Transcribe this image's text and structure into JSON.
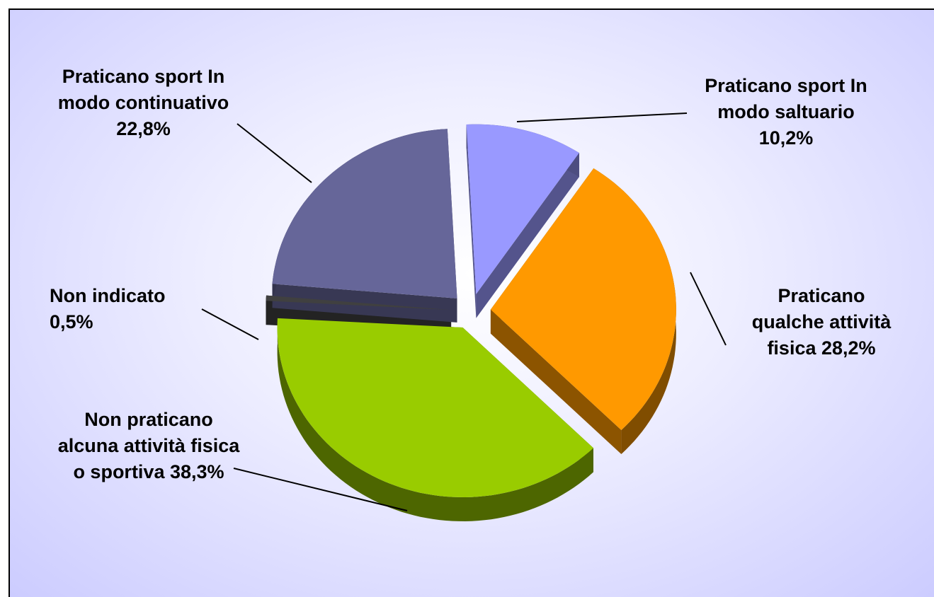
{
  "chart_data": {
    "type": "pie",
    "categories": [
      "Praticano sport In modo saltuario",
      "Praticano qualche attività fisica",
      "Non praticano alcuna attività fisica o sportiva",
      "Non indicato",
      "Praticano sport In modo continuativo"
    ],
    "values": [
      10.2,
      28.2,
      38.3,
      0.5,
      22.8
    ],
    "value_labels": [
      "10,2%",
      "28,2%",
      "38,3%",
      "0,5%",
      "22,8%"
    ],
    "colors": [
      "#9999ff",
      "#ff9900",
      "#99cc00",
      "#404040",
      "#666699"
    ]
  }
}
